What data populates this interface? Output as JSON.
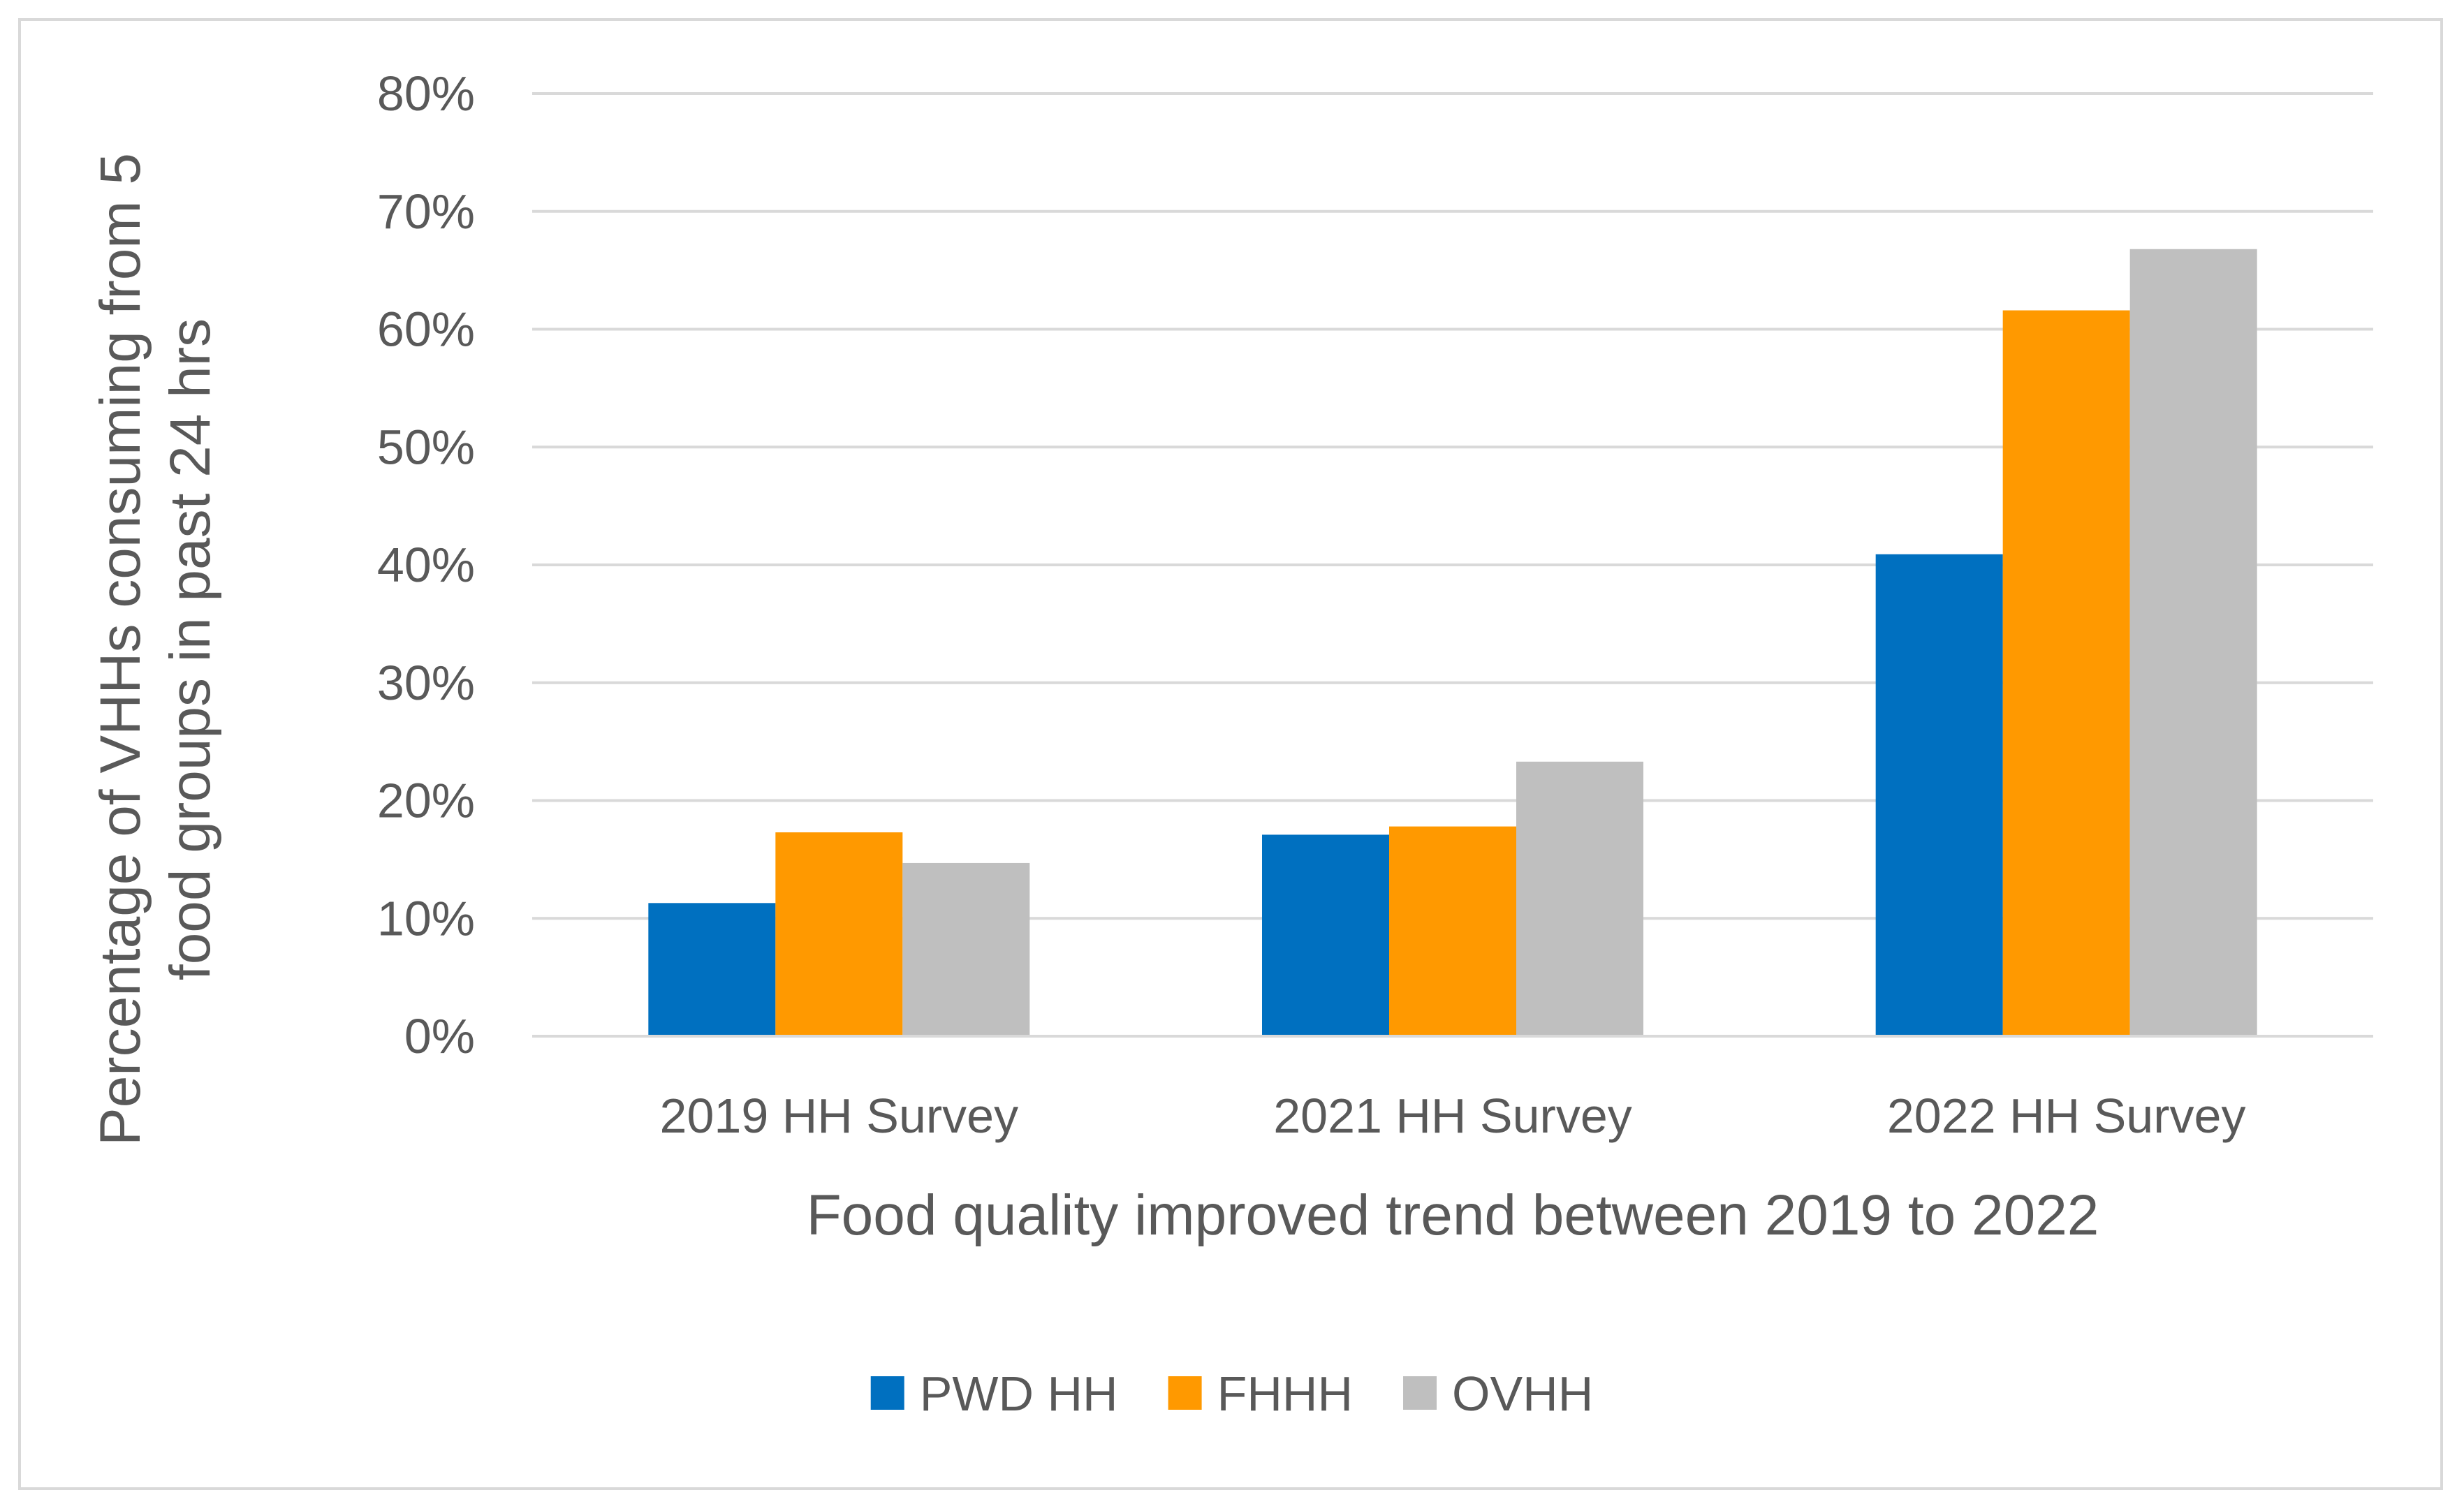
{
  "chart_data": {
    "type": "bar",
    "title": "",
    "xlabel": "Food quality improved trend between 2019 to 2022",
    "ylabel_lines": [
      "Percentage of VHHs consuming from 5",
      "food groups  in past 24 hrs"
    ],
    "categories": [
      "2019 HH Survey",
      "2021 HH Survey",
      "2022 HH Survey"
    ],
    "series": [
      {
        "name": "PWD HH",
        "color": "#0070C0",
        "values": [
          11.3,
          17.1,
          40.9
        ]
      },
      {
        "name": "FHHH",
        "color": "#FF9900",
        "values": [
          17.3,
          17.8,
          61.6
        ]
      },
      {
        "name": "OVHH",
        "color": "#BFBFBF",
        "values": [
          14.7,
          23.3,
          66.8
        ]
      }
    ],
    "ylim": [
      0,
      80
    ],
    "yticks": [
      0,
      10,
      20,
      30,
      40,
      50,
      60,
      70,
      80
    ],
    "ytick_labels": [
      "0%",
      "10%",
      "20%",
      "30%",
      "40%",
      "50%",
      "60%",
      "70%",
      "80%"
    ],
    "grid": true,
    "legend_position": "bottom"
  }
}
